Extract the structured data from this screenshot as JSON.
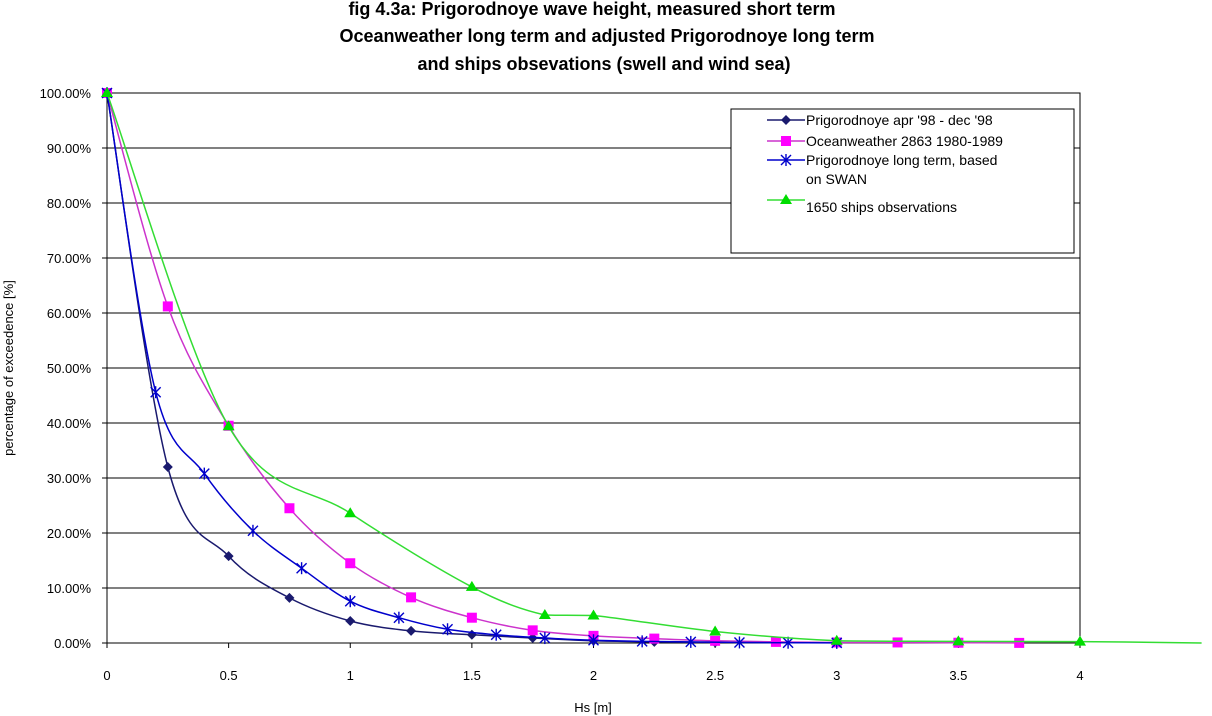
{
  "chart_data": {
    "type": "line",
    "title_lines": [
      "fig 4.3a: Prigorodnoye wave height, measured short term",
      "Oceanweather long term and adjusted Prigorodnoye long term",
      "and ships obsevations (swell and wind sea)"
    ],
    "xlabel": "Hs [m]",
    "ylabel": "percentage of exceedence [%]",
    "xlim": [
      0,
      4
    ],
    "ylim": [
      0,
      100
    ],
    "x_ticks": [
      "0",
      "0.5",
      "1",
      "1.5",
      "2",
      "2.5",
      "3",
      "3.5",
      "4"
    ],
    "y_ticks": [
      "0.00%",
      "10.00%",
      "20.00%",
      "30.00%",
      "40.00%",
      "50.00%",
      "60.00%",
      "70.00%",
      "80.00%",
      "90.00%",
      "100.00%"
    ],
    "grid": "horizontal",
    "legend_position": "top-right",
    "series": [
      {
        "name": "Prigorodnoye apr '98 - dec '98",
        "color": "#1a1a6e",
        "marker": "diamond",
        "x": [
          0,
          0.25,
          0.5,
          0.75,
          1.0,
          1.25,
          1.5,
          1.75,
          2.0,
          2.25,
          2.5
        ],
        "y": [
          100,
          32,
          15.8,
          8.2,
          4.0,
          2.2,
          1.5,
          0.9,
          0.4,
          0.2,
          0.1
        ]
      },
      {
        "name": "Oceanweather 2863 1980-1989",
        "color": "#ff00ff",
        "line_color": "#cc33cc",
        "marker": "square",
        "x": [
          0,
          0.25,
          0.5,
          0.75,
          1.0,
          1.25,
          1.5,
          1.75,
          2.0,
          2.25,
          2.5,
          2.75,
          3.0,
          3.25,
          3.5,
          3.75
        ],
        "y": [
          100,
          61.2,
          39.5,
          24.5,
          14.5,
          8.3,
          4.6,
          2.3,
          1.3,
          0.8,
          0.4,
          0.2,
          0.1,
          0.1,
          0.05,
          0.02
        ]
      },
      {
        "name": "Prigorodnoye long term, based on SWAN",
        "color": "#0000cc",
        "marker": "asterisk",
        "x": [
          0,
          0.2,
          0.4,
          0.6,
          0.8,
          1.0,
          1.2,
          1.4,
          1.6,
          1.8,
          2.0,
          2.2,
          2.4,
          2.6,
          2.8,
          3.0
        ],
        "y": [
          100,
          45.6,
          30.8,
          20.4,
          13.6,
          7.6,
          4.6,
          2.5,
          1.5,
          0.9,
          0.5,
          0.3,
          0.2,
          0.1,
          0.05,
          0.02
        ]
      },
      {
        "name": "1650 ships observations",
        "color": "#00dd00",
        "line_color": "#33dd33",
        "marker": "triangle",
        "x": [
          0,
          0.5,
          1.0,
          1.5,
          1.8,
          2.0,
          2.5,
          3.0,
          3.5,
          4.0,
          4.5
        ],
        "y": [
          100,
          39.4,
          23.6,
          10.2,
          5.1,
          5.0,
          2.1,
          0.4,
          0.3,
          0.25,
          0.0
        ]
      }
    ]
  }
}
